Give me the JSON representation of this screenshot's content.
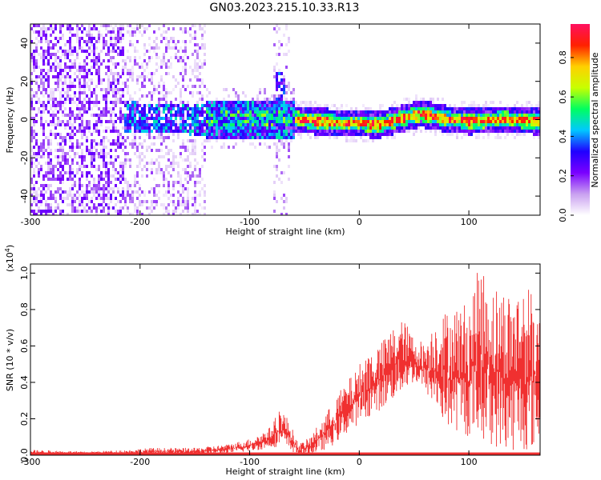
{
  "title": "GN03.2023.215.10.33.R13",
  "chart_data": [
    {
      "type": "heatmap",
      "xlabel": "Height of straight line (km)",
      "ylabel": "Frequency (Hz)",
      "xlim": [
        -300,
        165
      ],
      "ylim": [
        -50,
        50
      ],
      "xticks": [
        -300,
        -200,
        -100,
        0,
        100
      ],
      "yticks": [
        -40,
        -20,
        0,
        20,
        40
      ],
      "colorbar": {
        "label": "Normalized spectral amplitude",
        "range": [
          0,
          0.97
        ],
        "ticks": [
          "0.0",
          "0.2",
          "0.4",
          "0.6",
          "0.8"
        ],
        "colors": [
          "#ffffff",
          "#c9a0f0",
          "#7a00ff",
          "#2000ff",
          "#00c8ff",
          "#00ff60",
          "#c8ff00",
          "#ffd000",
          "#ff2000",
          "#ff1060"
        ]
      },
      "description_values": {
        "signal_band_center_hz": [
          {
            "x": -215,
            "y": 2
          },
          {
            "x": -150,
            "y": 1
          },
          {
            "x": -100,
            "y": 1
          },
          {
            "x": -60,
            "y": 1
          },
          {
            "x": -40,
            "y": 0
          },
          {
            "x": -20,
            "y": -1
          },
          {
            "x": 0,
            "y": -1
          },
          {
            "x": 15,
            "y": -2
          },
          {
            "x": 30,
            "y": 0
          },
          {
            "x": 55,
            "y": 4
          },
          {
            "x": 80,
            "y": 1
          },
          {
            "x": 100,
            "y": 0
          },
          {
            "x": 130,
            "y": 1
          },
          {
            "x": 160,
            "y": 0
          }
        ],
        "peak_amplitude_start_x": -60,
        "noise_region_x": [
          -300,
          -140
        ]
      }
    },
    {
      "type": "line",
      "xlabel": "Height of straight line (km)",
      "ylabel": "SNR (10 * v/v)",
      "yscale_label": "(x10",
      "yscale_exp": "4",
      "yscale_close": ")",
      "xlim": [
        -300,
        165
      ],
      "ylim": [
        0,
        1.05
      ],
      "xticks": [
        -300,
        -200,
        -100,
        0,
        100
      ],
      "yticks": [
        "0.0",
        "0.2",
        "0.4",
        "0.6",
        "0.8",
        "1.0"
      ],
      "series": [
        {
          "color": "#f03030",
          "envelope": {
            "x": [
              -300,
              -250,
              -210,
              -190,
              -150,
              -120,
              -100,
              -90,
              -80,
              -72,
              -65,
              -55,
              -45,
              -35,
              -25,
              -15,
              -5,
              5,
              20,
              30,
              40,
              50,
              60,
              70,
              80,
              100,
              110,
              120,
              140,
              150,
              165
            ],
            "low": [
              0.0,
              0.0,
              0.0,
              0.0,
              0.0,
              0.01,
              0.02,
              0.03,
              0.04,
              0.05,
              0.03,
              0.0,
              0.0,
              0.02,
              0.05,
              0.1,
              0.15,
              0.2,
              0.25,
              0.3,
              0.35,
              0.4,
              0.35,
              0.25,
              0.15,
              0.1,
              0.1,
              0.05,
              0.02,
              0.02,
              0.05
            ],
            "high": [
              0.03,
              0.02,
              0.03,
              0.04,
              0.04,
              0.06,
              0.09,
              0.12,
              0.16,
              0.27,
              0.2,
              0.06,
              0.1,
              0.19,
              0.28,
              0.38,
              0.45,
              0.55,
              0.62,
              0.7,
              0.75,
              0.65,
              0.62,
              0.75,
              0.8,
              0.85,
              1.05,
              0.95,
              0.9,
              0.95,
              0.85
            ]
          }
        }
      ]
    }
  ]
}
